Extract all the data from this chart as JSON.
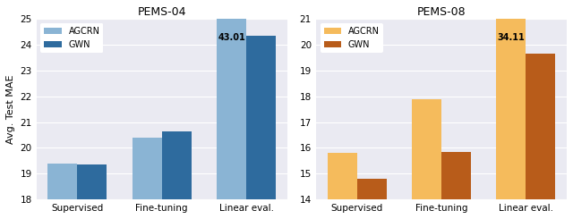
{
  "pems04": {
    "title": "PEMS-04",
    "categories": [
      "Supervised",
      "Fine-tuning",
      "Linear eval."
    ],
    "agcrn": [
      19.4,
      20.4,
      43.01
    ],
    "gwn": [
      19.35,
      20.65,
      24.35
    ],
    "agcrn_color": "#8ab4d4",
    "gwn_color": "#2e6b9e",
    "ylim": [
      18,
      25
    ],
    "yticks": [
      18,
      19,
      20,
      21,
      22,
      23,
      24,
      25
    ],
    "annotation_val": "43.01",
    "annotation_bar": 0,
    "annotation_group": 2
  },
  "pems08": {
    "title": "PEMS-08",
    "categories": [
      "Supervised",
      "Fine-tuning",
      "Linear eval."
    ],
    "agcrn": [
      15.8,
      17.9,
      34.11
    ],
    "gwn": [
      14.8,
      15.85,
      19.65
    ],
    "agcrn_color": "#f5bb5c",
    "gwn_color": "#b85c1a",
    "ylim": [
      14,
      21
    ],
    "yticks": [
      14,
      15,
      16,
      17,
      18,
      19,
      20,
      21
    ],
    "annotation_val": "34.11",
    "annotation_bar": 0,
    "annotation_group": 2
  },
  "ylabel": "Avg. Test MAE",
  "legend_labels": [
    "AGCRN",
    "GWN"
  ],
  "bar_width": 0.35,
  "figsize": [
    6.4,
    2.45
  ],
  "dpi": 100
}
